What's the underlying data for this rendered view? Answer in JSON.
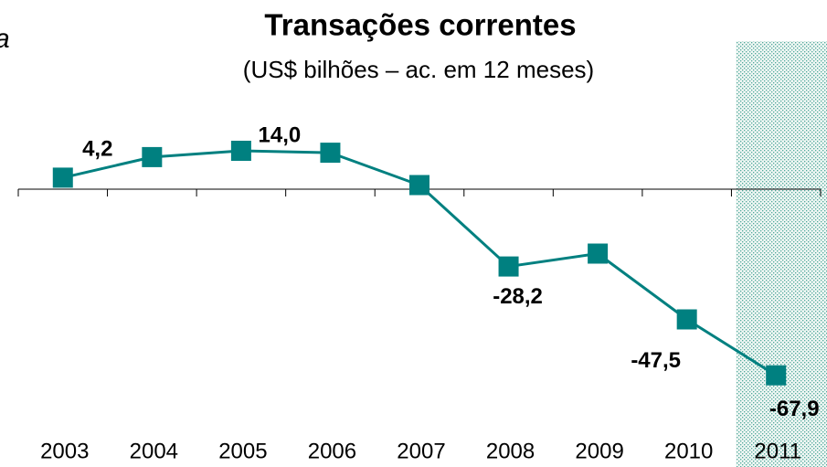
{
  "chart_data": {
    "type": "line",
    "title": "Transações correntes",
    "subtitle": "(US$ bilhões – ac. em 12 meses)",
    "annotations": [
      "a"
    ],
    "categories": [
      "2003",
      "2004",
      "2005",
      "2006",
      "2007",
      "2008",
      "2009",
      "2010",
      "2011"
    ],
    "series": [
      {
        "name": "Transações correntes",
        "color": "#008080",
        "values": [
          4.2,
          11.7,
          14.0,
          13.3,
          1.5,
          -28.2,
          -23.5,
          -47.5,
          -67.9
        ],
        "value_labels": [
          "4,2",
          null,
          "14,0",
          null,
          null,
          "-28,2",
          null,
          "-47,5",
          "-67,9"
        ]
      }
    ],
    "ylim": [
      -75,
      22
    ],
    "highlight": "2011"
  }
}
